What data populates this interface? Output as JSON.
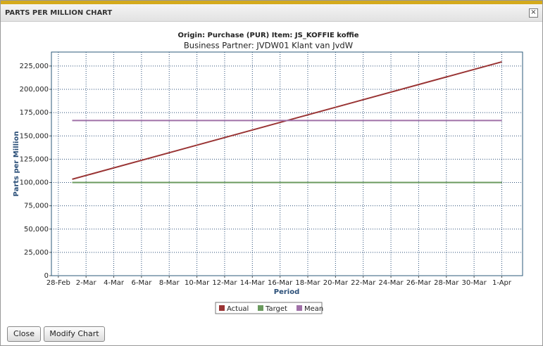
{
  "window": {
    "title": "PARTS PER MILLION CHART",
    "close_icon": "×"
  },
  "chart_data": {
    "type": "line",
    "title": "Origin: Purchase (PUR) Item: JS_KOFFIE koffie",
    "subtitle": "Business Partner: JVDW01 Klant van JvdW",
    "y_label": "Parts per Million",
    "x_label": "Period",
    "x": [
      "1-Mar",
      "1-Apr"
    ],
    "xticks": [
      "28-Feb",
      "2-Mar",
      "4-Mar",
      "6-Mar",
      "8-Mar",
      "10-Mar",
      "12-Mar",
      "14-Mar",
      "16-Mar",
      "18-Mar",
      "20-Mar",
      "22-Mar",
      "24-Mar",
      "26-Mar",
      "28-Mar",
      "30-Mar",
      "1-Apr"
    ],
    "ylim": [
      0,
      240000
    ],
    "yticks": [
      0,
      {
        "value": 25000,
        "label": "25,000"
      },
      {
        "value": 50000,
        "label": "50,000"
      },
      {
        "value": 75000,
        "label": "75,000"
      },
      {
        "value": 100000,
        "label": "100,000"
      },
      {
        "value": 125000,
        "label": "125,000"
      },
      {
        "value": 150000,
        "label": "150,000"
      },
      {
        "value": 175000,
        "label": "175,000"
      },
      {
        "value": 200000,
        "label": "200,000"
      },
      {
        "value": 225000,
        "label": "225,000"
      }
    ],
    "grid": true,
    "legend": "bottom",
    "series": [
      {
        "name": "Actual",
        "color": "#993333",
        "values": [
          103500,
          229500
        ]
      },
      {
        "name": "Target",
        "color": "#6a9a5e",
        "values": [
          100000,
          100000
        ]
      },
      {
        "name": "Mean",
        "color": "#a070a8",
        "values": [
          166500,
          166500
        ]
      }
    ]
  },
  "buttons": [
    "Close",
    "Modify Chart"
  ]
}
